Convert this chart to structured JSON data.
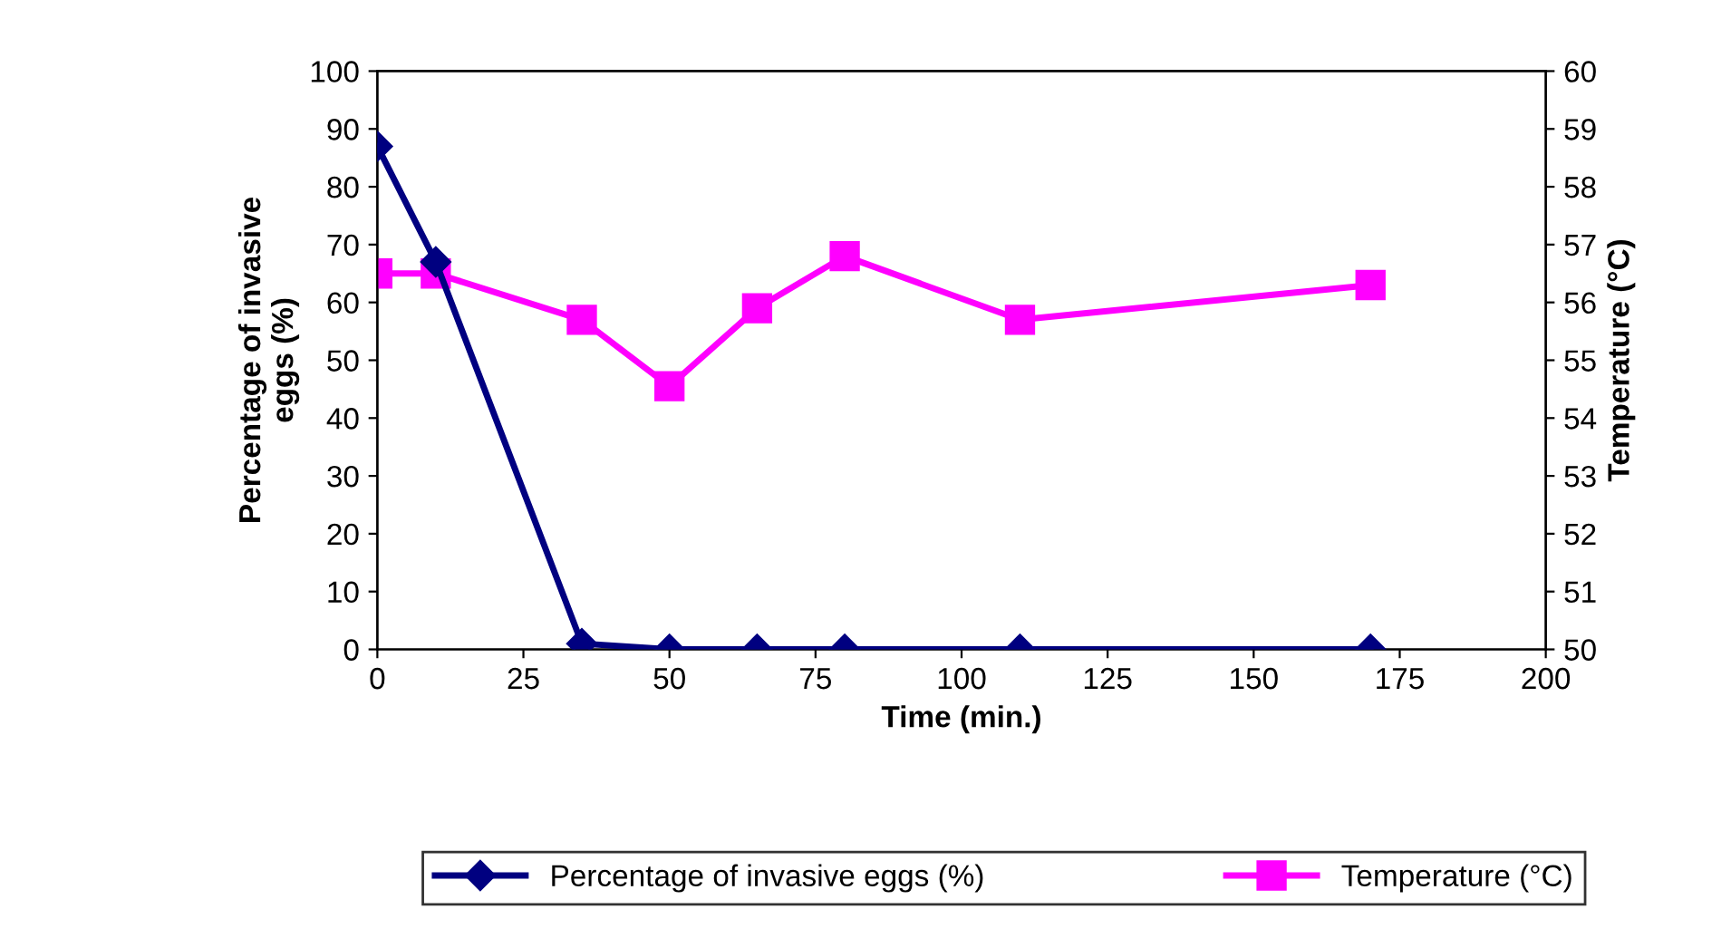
{
  "chart_data": {
    "type": "line",
    "xlabel": "Time (min.)",
    "ylabel": "Percentage of invasive\neggs (%)",
    "y2label": "Temperature (°C)",
    "xlim": [
      0,
      200
    ],
    "xticks": [
      0,
      25,
      50,
      75,
      100,
      125,
      150,
      175,
      200
    ],
    "ylim": [
      0,
      100
    ],
    "yticks": [
      0,
      10,
      20,
      30,
      40,
      50,
      60,
      70,
      80,
      90,
      100
    ],
    "y2lim": [
      50,
      60
    ],
    "y2ticks": [
      50,
      51,
      52,
      53,
      54,
      55,
      56,
      57,
      58,
      59,
      60
    ],
    "grid": false,
    "legend": "bottom",
    "series": [
      {
        "name": "Percentage of invasive eggs (%)",
        "color": "#000080",
        "marker": "diamond",
        "x": [
          0,
          10,
          35,
          50,
          65,
          80,
          110,
          170
        ],
        "values": [
          87,
          67,
          1,
          0,
          0,
          0,
          0,
          0
        ]
      },
      {
        "name": "Temperature (°C)",
        "color": "#ff00ff",
        "marker": "square",
        "axis": "y2",
        "x": [
          0,
          10,
          35,
          50,
          65,
          80,
          110,
          170
        ],
        "values": [
          56.5,
          56.5,
          55.7,
          54.55,
          55.9,
          56.8,
          55.7,
          56.3
        ]
      }
    ]
  }
}
